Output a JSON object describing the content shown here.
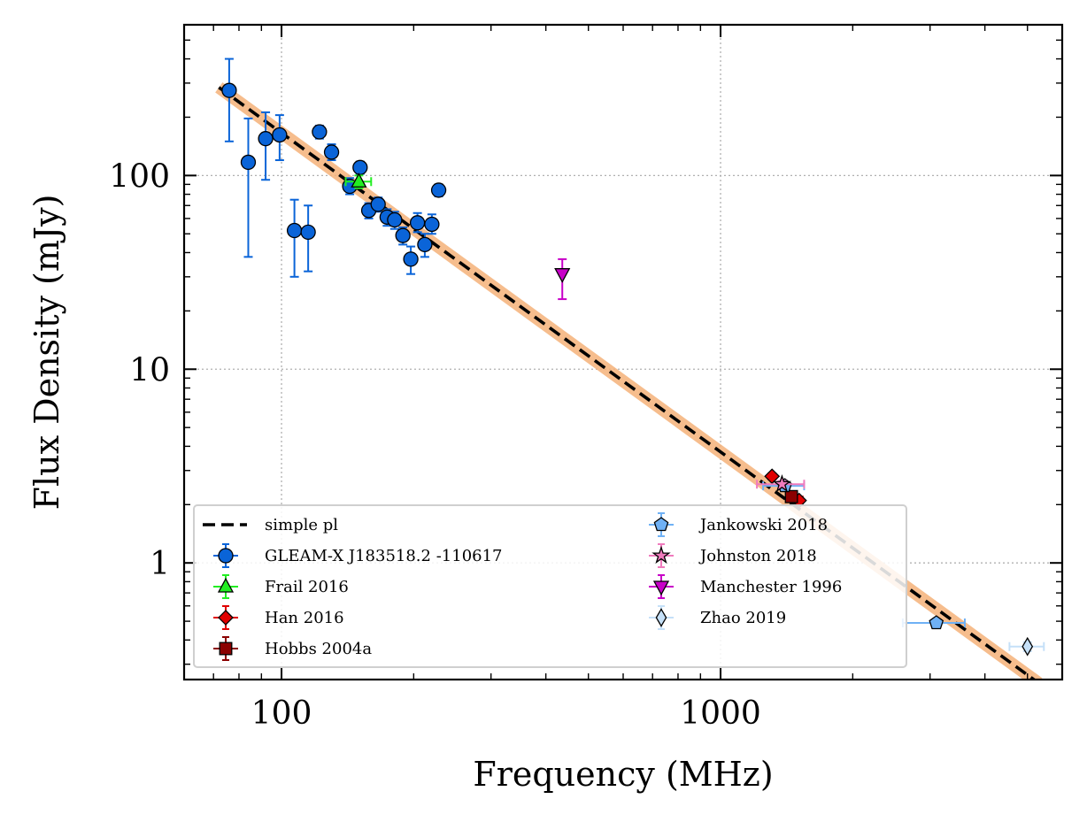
{
  "chart_data": {
    "type": "scatter",
    "title": "",
    "xlabel": "Frequency (MHz)",
    "ylabel": "Flux Density (mJy)",
    "xscale": "log",
    "yscale": "log",
    "xlim": [
      60,
      6000
    ],
    "ylim": [
      0.25,
      600
    ],
    "x_ticks": [
      {
        "value": 100,
        "label": "100"
      },
      {
        "value": 1000,
        "label": "1000"
      }
    ],
    "y_ticks": [
      {
        "value": 1,
        "label": "1"
      },
      {
        "value": 10,
        "label": "10"
      },
      {
        "value": 100,
        "label": "100"
      }
    ],
    "grid": true,
    "legend_position": "lower-left",
    "fit": {
      "name": "simple pl",
      "x_range": [
        72,
        5300
      ],
      "y_range": [
        285,
        0.24
      ],
      "band_color": "#f5b27a",
      "line_color": "#000000"
    },
    "series": [
      {
        "name": "GLEAM-X J183518.2 -110617",
        "marker": "circle",
        "color": "#0a64d8",
        "err_color": "#0a64d8",
        "points": [
          {
            "x": 76,
            "y": 275,
            "ylo": 150,
            "yhi": 400,
            "xerr": 2
          },
          {
            "x": 84,
            "y": 117,
            "ylo": 38,
            "yhi": 197,
            "xerr": 2
          },
          {
            "x": 92,
            "y": 155,
            "ylo": 95,
            "yhi": 212,
            "xerr": 2
          },
          {
            "x": 99,
            "y": 162,
            "ylo": 120,
            "yhi": 205,
            "xerr": 2
          },
          {
            "x": 107,
            "y": 52,
            "ylo": 30,
            "yhi": 75,
            "xerr": 2
          },
          {
            "x": 115,
            "y": 51,
            "ylo": 32,
            "yhi": 70,
            "xerr": 2
          },
          {
            "x": 122,
            "y": 168,
            "ylo": 155,
            "yhi": 181,
            "xerr": 2
          },
          {
            "x": 130,
            "y": 132,
            "ylo": 120,
            "yhi": 145,
            "xerr": 2
          },
          {
            "x": 143,
            "y": 88,
            "ylo": 80,
            "yhi": 97,
            "xerr": 3
          },
          {
            "x": 151,
            "y": 110,
            "ylo": 102,
            "yhi": 118,
            "xerr": 3
          },
          {
            "x": 158,
            "y": 66,
            "ylo": 60,
            "yhi": 72,
            "xerr": 3
          },
          {
            "x": 166,
            "y": 71,
            "ylo": 65,
            "yhi": 77,
            "xerr": 3
          },
          {
            "x": 174,
            "y": 61,
            "ylo": 55,
            "yhi": 67,
            "xerr": 3
          },
          {
            "x": 181,
            "y": 59,
            "ylo": 53,
            "yhi": 65,
            "xerr": 3
          },
          {
            "x": 189,
            "y": 49,
            "ylo": 44,
            "yhi": 54,
            "xerr": 3
          },
          {
            "x": 197,
            "y": 37,
            "ylo": 31,
            "yhi": 43,
            "xerr": 3
          },
          {
            "x": 204,
            "y": 57,
            "ylo": 51,
            "yhi": 64,
            "xerr": 3
          },
          {
            "x": 212,
            "y": 44,
            "ylo": 38,
            "yhi": 50,
            "xerr": 3
          },
          {
            "x": 220,
            "y": 56,
            "ylo": 50,
            "yhi": 63,
            "xerr": 3
          },
          {
            "x": 228,
            "y": 84,
            "ylo": 78,
            "yhi": 90,
            "xerr": 3
          }
        ]
      },
      {
        "name": "Frail 2016",
        "marker": "triangle-up",
        "color": "#22ee22",
        "err_color": "#22ee22",
        "points": [
          {
            "x": 150,
            "y": 93,
            "ylo": 86,
            "yhi": 100,
            "xerr": 10
          }
        ]
      },
      {
        "name": "Han 2016",
        "marker": "diamond",
        "color": "#e00000",
        "err_color": "#e00000",
        "points": [
          {
            "x": 1310,
            "y": 2.8,
            "ylo": 2.7,
            "yhi": 2.9,
            "xerr": 10
          },
          {
            "x": 1510,
            "y": 2.1,
            "ylo": 2.0,
            "yhi": 2.2,
            "xerr": 10
          }
        ]
      },
      {
        "name": "Hobbs 2004a",
        "marker": "square",
        "color": "#8b0000",
        "err_color": "#8b0000",
        "points": [
          {
            "x": 1450,
            "y": 2.2,
            "ylo": 2.1,
            "yhi": 2.3,
            "xerr": 10
          }
        ]
      },
      {
        "name": "Jankowski 2018",
        "marker": "pentagon",
        "color": "#6fb1f5",
        "err_color": "#6fb1f5",
        "points": [
          {
            "x": 1400,
            "y": 2.5,
            "ylo": 2.4,
            "yhi": 2.6,
            "xerr": 150
          },
          {
            "x": 3100,
            "y": 0.49,
            "ylo": 0.47,
            "yhi": 0.51,
            "xerr": 500
          }
        ]
      },
      {
        "name": "Johnston 2018",
        "marker": "star",
        "color": "#f07bbd",
        "err_color": "#f07bbd",
        "points": [
          {
            "x": 1380,
            "y": 2.55,
            "ylo": 2.45,
            "yhi": 2.65,
            "xerr": 170
          }
        ]
      },
      {
        "name": "Manchester 1996",
        "marker": "triangle-down",
        "color": "#c800c8",
        "err_color": "#c800c8",
        "points": [
          {
            "x": 436,
            "y": 31,
            "ylo": 23,
            "yhi": 37,
            "xerr": 2
          }
        ]
      },
      {
        "name": "Zhao 2019",
        "marker": "thin-diamond",
        "color": "#c5e0f8",
        "err_color": "#c5e0f8",
        "points": [
          {
            "x": 5000,
            "y": 0.37,
            "ylo": 0.35,
            "yhi": 0.39,
            "xerr": 450
          }
        ]
      }
    ],
    "legend": {
      "columns": [
        [
          "simple pl",
          "GLEAM-X J183518.2 -110617",
          "Frail 2016",
          "Han 2016",
          "Hobbs 2004a"
        ],
        [
          "Jankowski 2018",
          "Johnston 2018",
          "Manchester 1996",
          "Zhao 2019"
        ]
      ]
    }
  }
}
